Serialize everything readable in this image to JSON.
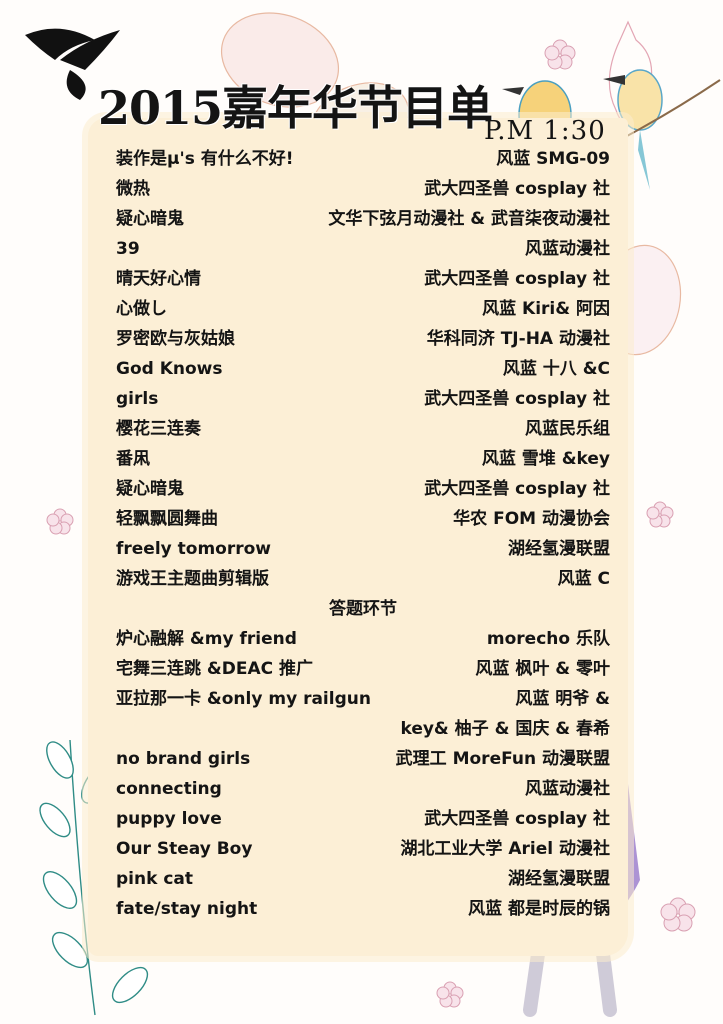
{
  "program": {
    "title": "2015嘉年华节目单",
    "time": "P.M 1:30"
  },
  "items": [
    {
      "song": "装作是μ's 有什么不好!",
      "group": "风蓝  SMG-09"
    },
    {
      "song": "微热",
      "group": "武大四圣兽 cosplay 社"
    },
    {
      "song": "疑心暗鬼",
      "group": "文华下弦月动漫社 & 武音柒夜动漫社"
    },
    {
      "song": "39",
      "group": "风蓝动漫社"
    },
    {
      "song": "晴天好心情",
      "group": "武大四圣兽 cosplay 社"
    },
    {
      "song": "心做し",
      "group": "风蓝  Kiri& 阿因"
    },
    {
      "song": "罗密欧与灰姑娘",
      "group": "华科同济 TJ-HA 动漫社"
    },
    {
      "song": "God Knows",
      "group": "风蓝  十八 &C"
    },
    {
      "song": "girls",
      "group": "武大四圣兽 cosplay 社"
    },
    {
      "song": "樱花三连奏",
      "group": "风蓝民乐组"
    },
    {
      "song": "番凩",
      "group": "风蓝  雪堆 &key"
    },
    {
      "song": "疑心暗鬼",
      "group": "武大四圣兽 cosplay 社"
    },
    {
      "song": "轻飘飘圆舞曲",
      "group": "华农 FOM 动漫协会"
    },
    {
      "song": "freely tomorrow",
      "group": "湖经氢漫联盟"
    },
    {
      "song": "游戏王主题曲剪辑版",
      "group": "风蓝  C"
    },
    {
      "song": "答题环节",
      "group": ""
    },
    {
      "song": "炉心融解 &my friend",
      "group": "morecho 乐队"
    },
    {
      "song": "宅舞三连跳 &DEAC 推广",
      "group": "风蓝  枫叶 & 零叶"
    },
    {
      "song": "亚拉那一卡 &only my railgun",
      "group": "风蓝  明爷 &"
    },
    {
      "song": "",
      "group": "key& 柚子 & 国庆 & 春希"
    },
    {
      "song": "no brand girls",
      "group": "武理工 MoreFun 动漫联盟"
    },
    {
      "song": "connecting",
      "group": "风蓝动漫社"
    },
    {
      "song": "puppy love",
      "group": "武大四圣兽 cosplay 社"
    },
    {
      "song": "Our Steay Boy",
      "group": "湖北工业大学 Ariel 动漫社"
    },
    {
      "song": "pink cat",
      "group": "湖经氢漫联盟"
    },
    {
      "song": "fate/stay night",
      "group": "风蓝  都是时辰的锅"
    }
  ]
}
